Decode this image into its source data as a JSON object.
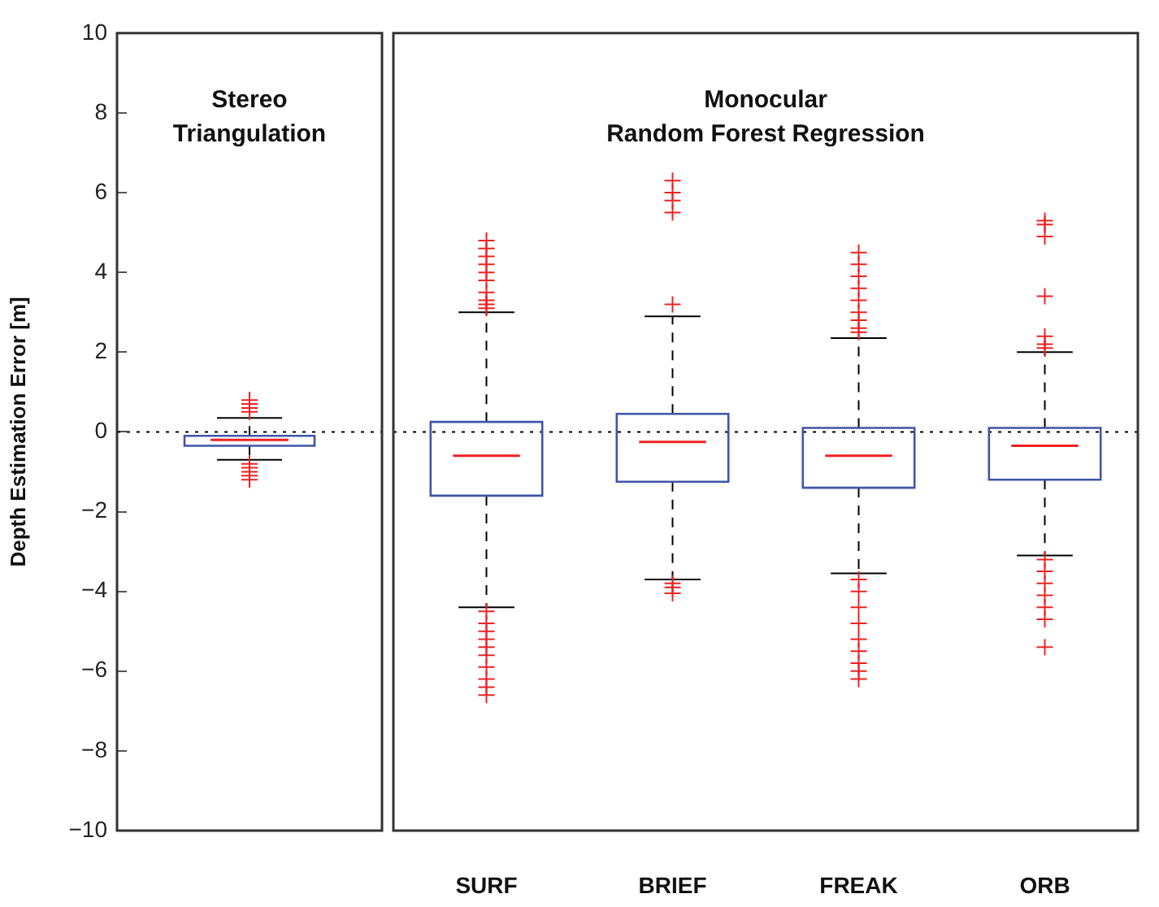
{
  "chart_data": [
    {
      "type": "box",
      "ylabel": "Depth Estimation Error [m]",
      "categories": [
        null
      ],
      "ylim": [
        -10,
        10
      ],
      "yticks": [
        {
          "value": -10,
          "label": "−10"
        },
        {
          "value": -8,
          "label": "−8"
        },
        {
          "value": -6,
          "label": "−6"
        },
        {
          "value": -4,
          "label": "−4"
        },
        {
          "value": -2,
          "label": "−2"
        },
        0,
        2,
        4,
        6,
        8,
        10
      ],
      "tick_labels": "y",
      "grid": false,
      "legend": false,
      "marker": "cross",
      "color": "#3f55a8",
      "boxes": [
        {
          "low": -0.7,
          "q1": -0.35,
          "median": -0.2,
          "q3": -0.1,
          "high": 0.35,
          "outliers": [
            0.5,
            0.6,
            0.7,
            0.8,
            -0.8,
            -0.9,
            -1.0,
            -1.1,
            -1.2
          ]
        }
      ],
      "ref_lines": [
        {
          "axis": "y",
          "value": 0,
          "line_style": "dotted",
          "color": "#000000"
        }
      ],
      "annotations": [
        "Stereo\nTriangulation"
      ]
    },
    {
      "type": "box",
      "categories": [
        "SURF",
        "BRIEF",
        "FREAK",
        "ORB"
      ],
      "ylim": [
        -10,
        10
      ],
      "tick_labels": "x",
      "grid": false,
      "legend": false,
      "marker": "cross",
      "color": "#3f55a8",
      "boxes": [
        {
          "low": -4.4,
          "q1": -1.6,
          "median": -0.6,
          "q3": 0.25,
          "high": 3.0,
          "outliers": [
            3.1,
            3.2,
            3.3,
            3.5,
            3.8,
            4.0,
            4.2,
            4.4,
            4.6,
            4.8,
            -4.5,
            -4.8,
            -5.0,
            -5.2,
            -5.4,
            -5.6,
            -5.9,
            -6.2,
            -6.4,
            -6.6
          ]
        },
        {
          "low": -3.7,
          "q1": -1.25,
          "median": -0.25,
          "q3": 0.45,
          "high": 2.9,
          "outliers": [
            3.2,
            5.5,
            5.8,
            6.0,
            6.3,
            -3.8,
            -3.9,
            -4.05
          ]
        },
        {
          "low": -3.55,
          "q1": -1.4,
          "median": -0.6,
          "q3": 0.1,
          "high": 2.35,
          "outliers": [
            2.5,
            2.6,
            2.8,
            3.0,
            3.3,
            3.6,
            3.9,
            4.2,
            4.5,
            -3.7,
            -4.0,
            -4.4,
            -4.8,
            -5.2,
            -5.5,
            -5.8,
            -6.0,
            -6.2
          ]
        },
        {
          "low": -3.1,
          "q1": -1.2,
          "median": -0.35,
          "q3": 0.1,
          "high": 2.0,
          "outliers": [
            2.1,
            2.2,
            2.4,
            3.4,
            4.9,
            5.2,
            5.3,
            -3.2,
            -3.5,
            -3.8,
            -4.1,
            -4.4,
            -4.7,
            -5.4
          ]
        }
      ],
      "ref_lines": [
        {
          "axis": "y",
          "value": 0,
          "line_style": "dotted",
          "color": "#000000"
        }
      ],
      "annotations": [
        "Monocular\nRandom Forest Regression"
      ]
    }
  ]
}
